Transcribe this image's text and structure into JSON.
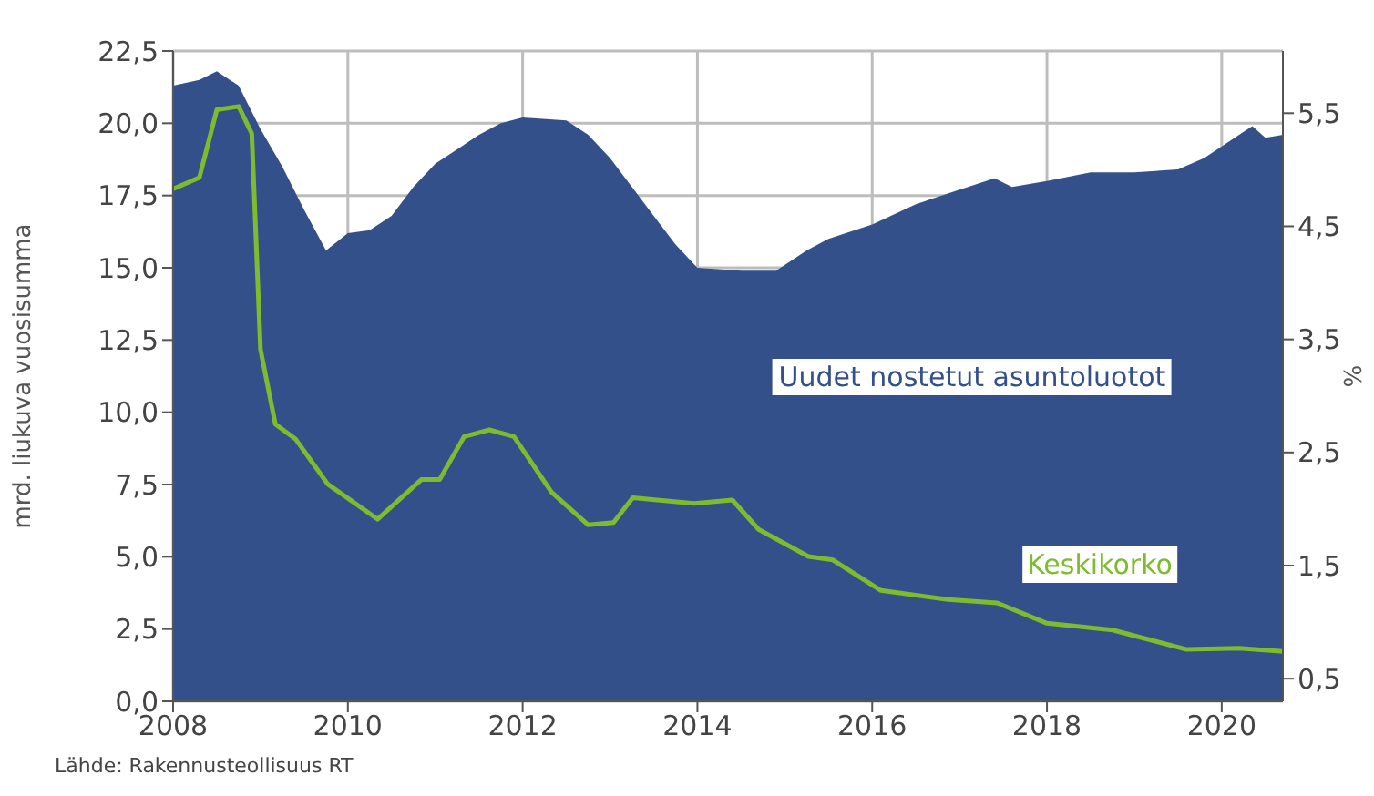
{
  "chart_data": {
    "type": "area",
    "ylabel": "mrd. liukuva vuosisumma",
    "y2label": "%",
    "annotations": [
      "Lähde: Rakennusteollisuus RT"
    ],
    "xlim": [
      2008,
      2020.7
    ],
    "xticks": [
      2008,
      2010,
      2012,
      2014,
      2016,
      2018,
      2020
    ],
    "ylim": [
      0,
      22.5
    ],
    "yticks": [
      {
        "value": 0,
        "label": "0,0"
      },
      {
        "value": 2.5,
        "label": "2,5"
      },
      {
        "value": 5,
        "label": "5,0"
      },
      {
        "value": 7.5,
        "label": "7,5"
      },
      {
        "value": 10,
        "label": "10,0"
      },
      {
        "value": 12.5,
        "label": "12,5"
      },
      {
        "value": 15,
        "label": "15,0"
      },
      {
        "value": 17.5,
        "label": "17,5"
      },
      {
        "value": 20,
        "label": "20,0"
      },
      {
        "value": 22.5,
        "label": "22,5"
      }
    ],
    "y2lim": [
      0.3,
      6.05
    ],
    "y2ticks": [
      {
        "value": 0.5,
        "label": "0,5"
      },
      {
        "value": 1.5,
        "label": "1,5"
      },
      {
        "value": 2.5,
        "label": "2,5"
      },
      {
        "value": 3.5,
        "label": "3,5"
      },
      {
        "value": 4.5,
        "label": "4,5"
      },
      {
        "value": 5.5,
        "label": "5,5"
      }
    ],
    "grid": true,
    "series": [
      {
        "name": "Uudet nostetut asuntoluotot",
        "color": "#34508a",
        "x": [
          2008,
          2008.3,
          2008.5,
          2008.75,
          2009,
          2009.25,
          2009.5,
          2009.75,
          2010,
          2010.25,
          2010.5,
          2010.75,
          2011,
          2011.25,
          2011.5,
          2011.75,
          2012,
          2012.5,
          2012.75,
          2013,
          2013.25,
          2013.5,
          2013.75,
          2014,
          2014.5,
          2014.9,
          2015.25,
          2015.5,
          2016,
          2016.5,
          2017,
          2017.4,
          2017.6,
          2018,
          2018.5,
          2019,
          2019.5,
          2019.8,
          2020.25,
          2020.35,
          2020.5,
          2020.7
        ],
        "values": [
          21.3,
          21.5,
          21.8,
          21.3,
          19.8,
          18.5,
          17,
          15.6,
          16.2,
          16.3,
          16.8,
          17.8,
          18.6,
          19.1,
          19.6,
          20,
          20.2,
          20.1,
          19.6,
          18.8,
          17.8,
          16.8,
          15.8,
          15,
          14.9,
          14.9,
          15.6,
          16,
          16.5,
          17.2,
          17.7,
          18.1,
          17.8,
          18,
          18.3,
          18.3,
          18.4,
          18.8,
          19.7,
          19.9,
          19.5,
          19.6
        ]
      },
      {
        "name": "Keskikorko",
        "type": "line",
        "axis": "y2",
        "color": "#7dbb2f",
        "x": [
          2008,
          2008.3,
          2008.5,
          2008.75,
          2008.9,
          2009,
          2009.17,
          2009.4,
          2009.77,
          2010.34,
          2010.84,
          2011.05,
          2011.33,
          2011.62,
          2011.9,
          2012.33,
          2012.75,
          2013.04,
          2013.26,
          2013.96,
          2014.4,
          2014.7,
          2015.27,
          2015.55,
          2016.1,
          2016.87,
          2017.43,
          2018,
          2018.75,
          2019.59,
          2020.2,
          2020.7
        ],
        "values": [
          4.83,
          4.93,
          5.53,
          5.56,
          5.32,
          3.41,
          2.75,
          2.62,
          2.22,
          1.91,
          2.26,
          2.26,
          2.64,
          2.7,
          2.64,
          2.15,
          1.86,
          1.88,
          2.1,
          2.05,
          2.08,
          1.82,
          1.58,
          1.55,
          1.28,
          1.2,
          1.17,
          0.99,
          0.93,
          0.76,
          0.77,
          0.74
        ]
      }
    ]
  }
}
